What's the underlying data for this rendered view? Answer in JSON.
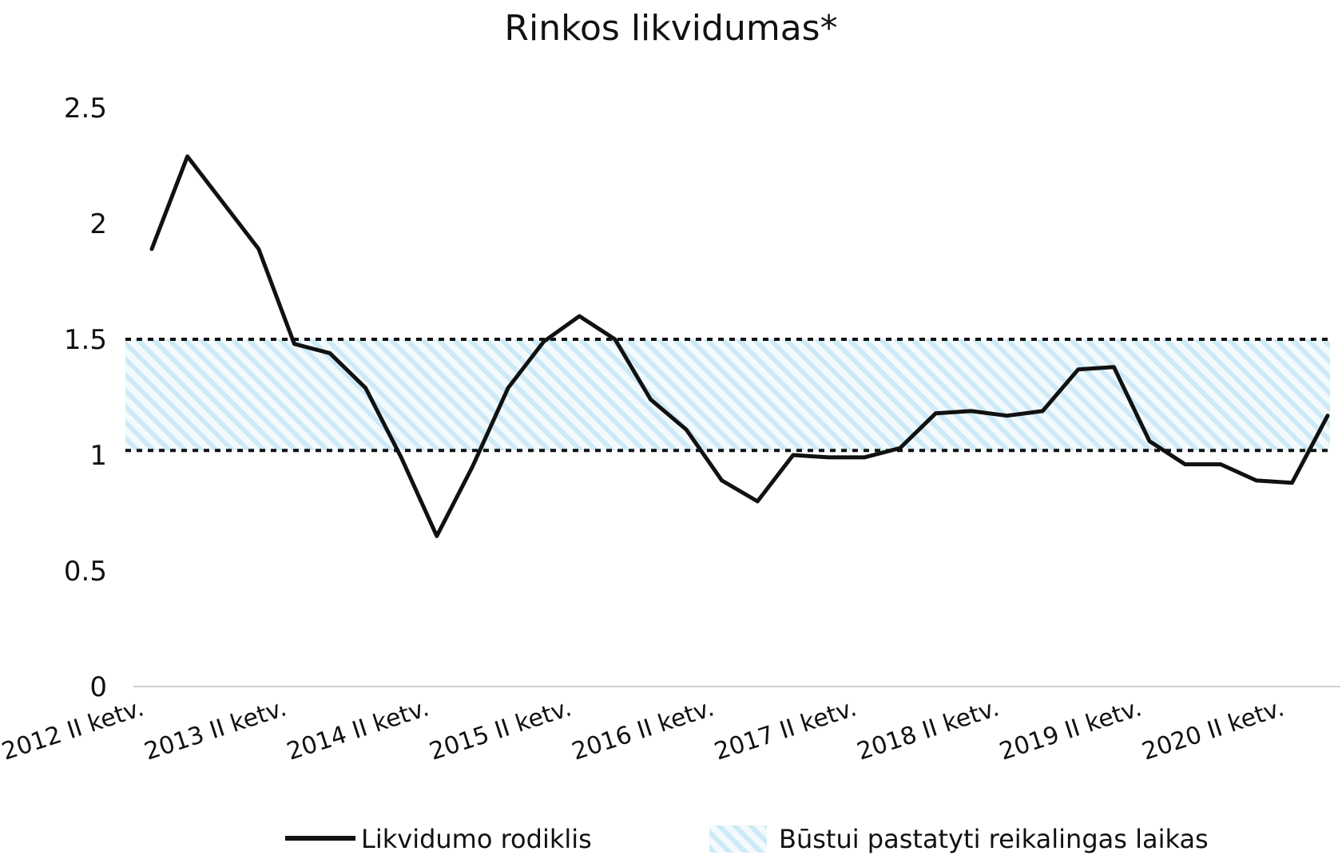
{
  "chart_data": {
    "type": "line",
    "title": "Rinkos likvidumas*",
    "xlabel": "",
    "ylabel": "",
    "ylim": [
      0,
      2.5
    ],
    "yticks": [
      "0",
      "0.5",
      "1",
      "1.5",
      "2",
      "2.5"
    ],
    "ytick_values": [
      0,
      0.5,
      1,
      1.5,
      2,
      2.5
    ],
    "xtick_labels": [
      "2012 II ketv.",
      "2013 II ketv.",
      "2014 II ketv.",
      "2015 II ketv.",
      "2016 II ketv.",
      "2017 II ketv.",
      "2018 II ketv.",
      "2019 II ketv.",
      "2020 II ketv."
    ],
    "series": [
      {
        "name": "Likvidumo rodiklis",
        "color": "#111111",
        "values": [
          1.89,
          2.29,
          2.09,
          1.89,
          1.48,
          1.44,
          1.29,
          0.99,
          0.65,
          0.95,
          1.29,
          1.49,
          1.6,
          1.5,
          1.24,
          1.11,
          0.89,
          0.8,
          1.0,
          0.99,
          0.99,
          1.03,
          1.18,
          1.19,
          1.17,
          1.19,
          1.37,
          1.38,
          1.06,
          0.96,
          0.96,
          0.89,
          0.88,
          1.17
        ]
      }
    ],
    "band": {
      "name": "Būstui pastatyti reikalingas laikas",
      "range": [
        1.02,
        1.5
      ],
      "color": "#bfe6f5"
    },
    "legend_position": "bottom",
    "grid": false
  }
}
